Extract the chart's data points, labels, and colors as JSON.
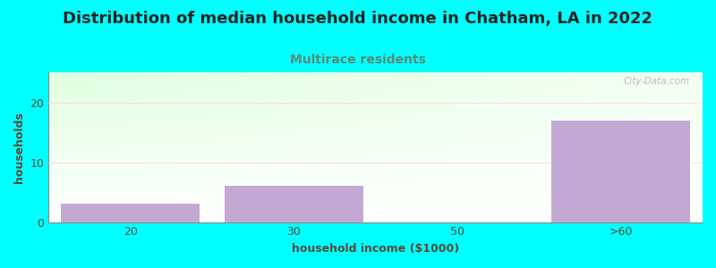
{
  "title": "Distribution of median household income in Chatham, LA in 2022",
  "subtitle": "Multirace residents",
  "xlabel": "household income ($1000)",
  "ylabel": "households",
  "background_color": "#00FFFF",
  "bar_color": "#c4a8d4",
  "categories": [
    "20",
    "30",
    "50",
    ">60"
  ],
  "values": [
    3,
    6,
    0,
    17
  ],
  "ylim": [
    0,
    25
  ],
  "yticks": [
    0,
    10,
    20
  ],
  "title_fontsize": 13,
  "subtitle_fontsize": 10,
  "subtitle_color": "#5a8a7a",
  "title_color": "#222222",
  "axis_label_color": "#5a4a3a",
  "tick_color": "#5a4a3a",
  "watermark": "City-Data.com",
  "gradient_top_left": "#d8f0d0",
  "gradient_top_right": "#f8f8ff",
  "gradient_bottom": "#ffffff"
}
